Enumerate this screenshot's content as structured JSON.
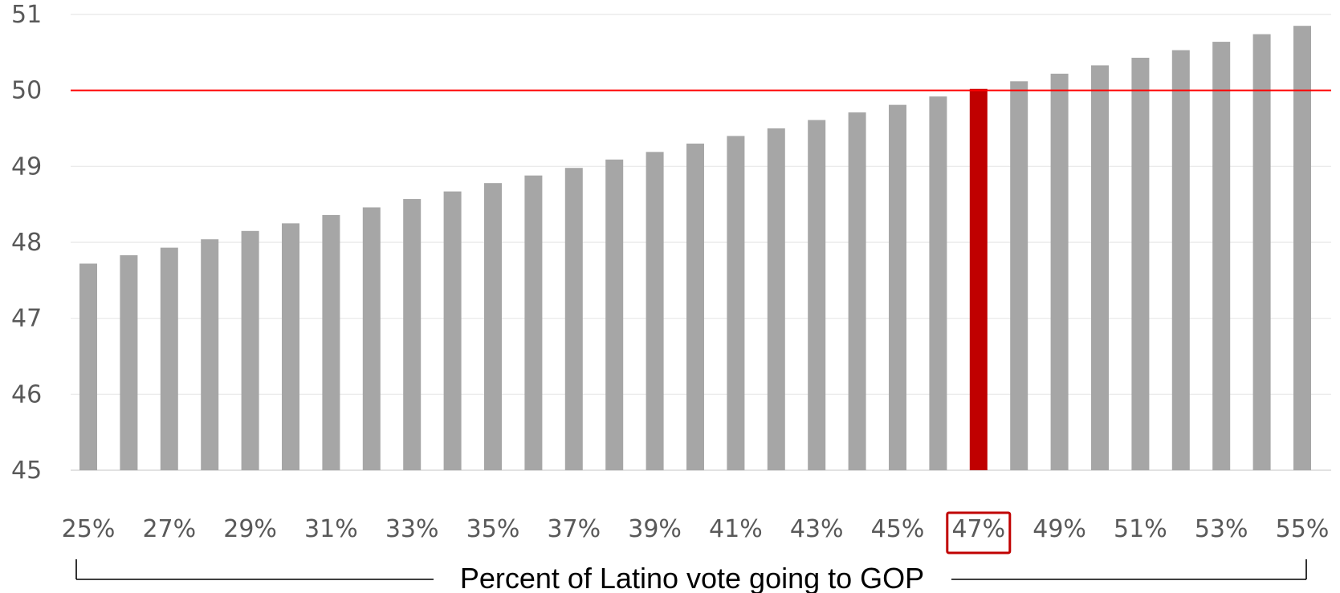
{
  "chart_data": {
    "type": "bar",
    "title": "",
    "xlabel": "Percent of Latino vote going to GOP",
    "ylabel": "",
    "ylim": [
      45,
      51
    ],
    "yticks": [
      45,
      46,
      47,
      48,
      49,
      50,
      51
    ],
    "grid": true,
    "legend": "none",
    "reference_line": {
      "value": 50,
      "color": "#ff0000"
    },
    "highlight": {
      "category": "47%",
      "color": "#c00000"
    },
    "bar_color": "#a6a6a6",
    "categories": [
      "25%",
      "26%",
      "27%",
      "28%",
      "29%",
      "30%",
      "31%",
      "32%",
      "33%",
      "34%",
      "35%",
      "36%",
      "37%",
      "38%",
      "39%",
      "40%",
      "41%",
      "42%",
      "43%",
      "44%",
      "45%",
      "46%",
      "47%",
      "48%",
      "49%",
      "50%",
      "51%",
      "52%",
      "53%",
      "54%",
      "55%"
    ],
    "tick_labels": [
      "25%",
      "27%",
      "29%",
      "31%",
      "33%",
      "35%",
      "37%",
      "39%",
      "41%",
      "43%",
      "45%",
      "47%",
      "49%",
      "51%",
      "53%",
      "55%"
    ],
    "values": [
      47.72,
      47.83,
      47.93,
      48.04,
      48.15,
      48.25,
      48.36,
      48.46,
      48.57,
      48.67,
      48.78,
      48.88,
      48.98,
      49.09,
      49.19,
      49.3,
      49.4,
      49.5,
      49.61,
      49.71,
      49.81,
      49.92,
      50.02,
      50.12,
      50.22,
      50.33,
      50.43,
      50.53,
      50.64,
      50.74,
      50.85
    ]
  }
}
